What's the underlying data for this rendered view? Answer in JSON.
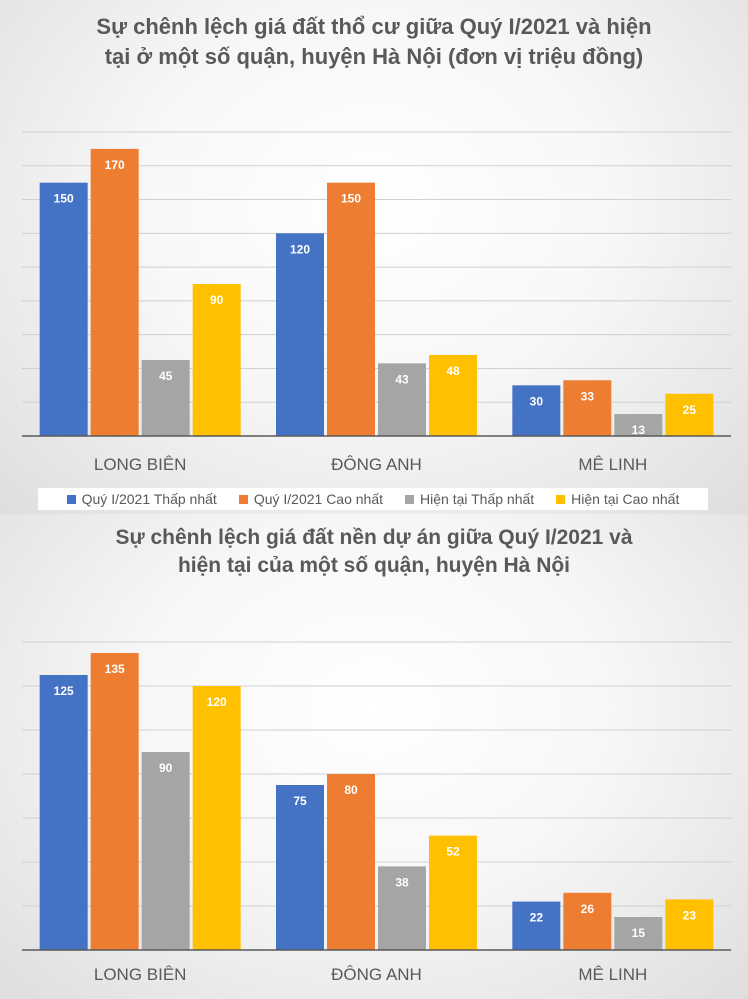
{
  "colors": {
    "series": [
      "#4472c4",
      "#ed7d31",
      "#a5a5a5",
      "#ffc000"
    ],
    "grid": "#d0d0d0",
    "axis": "#595959",
    "text": "#595959",
    "label_light": "#ffffff"
  },
  "legend": {
    "items": [
      "Quý I/2021 Thấp nhất",
      "Quý I/2021 Cao nhất",
      "Hiện tại Thấp nhất",
      "Hiện tại Cao nhất"
    ]
  },
  "chart_data": [
    {
      "type": "bar",
      "title": "Sự chênh lệch giá đất thổ cư giữa Quý I/2021 và hiện tại ở một số quận, huyện Hà Nội (đơn vị triệu đồng)",
      "categories": [
        "LONG BIÊN",
        "ĐÔNG ANH",
        "MÊ LINH"
      ],
      "series": [
        {
          "name": "Quý I/2021 Thấp nhất",
          "values": [
            150,
            120,
            30
          ]
        },
        {
          "name": "Quý I/2021 Cao nhất",
          "values": [
            170,
            150,
            33
          ]
        },
        {
          "name": "Hiện tại Thấp nhất",
          "values": [
            45,
            43,
            13
          ]
        },
        {
          "name": "Hiện tại Cao nhất",
          "values": [
            90,
            48,
            25
          ]
        }
      ],
      "ylim": [
        0,
        180
      ],
      "grid_step": 20,
      "grid": true,
      "legend_position": "bottom"
    },
    {
      "type": "bar",
      "title": "Sự chênh lệch giá đất nền dự án giữa Quý I/2021 và hiện tại của một số quận, huyện Hà Nội",
      "categories": [
        "LONG BIÊN",
        "ĐÔNG ANH",
        "MÊ LINH"
      ],
      "series": [
        {
          "name": "Quý I/2021 Thấp nhất",
          "values": [
            125,
            75,
            22
          ]
        },
        {
          "name": "Quý I/2021 Cao nhất",
          "values": [
            135,
            80,
            26
          ]
        },
        {
          "name": "Hiện tại Thấp nhất",
          "values": [
            90,
            38,
            15
          ]
        },
        {
          "name": "Hiện tại Cao nhất",
          "values": [
            120,
            52,
            23
          ]
        }
      ],
      "ylim": [
        0,
        140
      ],
      "grid_step": 20,
      "grid": true,
      "legend_position": "none"
    }
  ]
}
